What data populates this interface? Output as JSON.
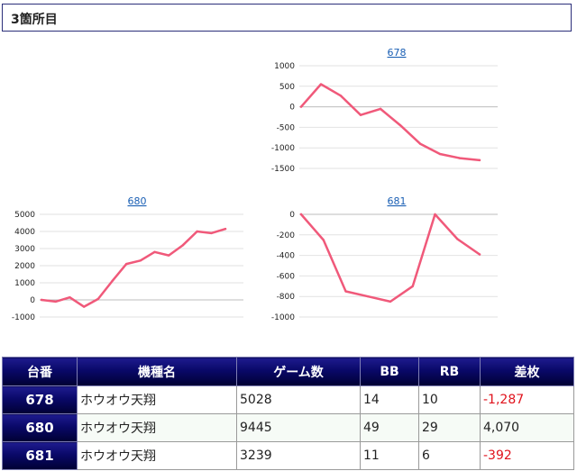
{
  "section": {
    "title": "3箇所目"
  },
  "charts": [
    {
      "machine": "678",
      "chart_data": {
        "type": "line",
        "title": "678",
        "ylim": [
          -1500,
          1000
        ],
        "yticks": [
          "1000",
          "500",
          "0",
          "-500",
          "-1000",
          "-1500"
        ],
        "series": [
          {
            "values": [
              0,
              550,
              270,
              -200,
              -50,
              -450,
              -900,
              -1150,
              -1250,
              -1300
            ]
          }
        ]
      }
    },
    {
      "machine": "680",
      "chart_data": {
        "type": "line",
        "title": "680",
        "ylim": [
          -1000,
          5000
        ],
        "yticks": [
          "5000",
          "4000",
          "3000",
          "2000",
          "1000",
          "0",
          "-1000"
        ],
        "series": [
          {
            "values": [
              0,
              -100,
              150,
              -400,
              50,
              1100,
              2100,
              2300,
              2800,
              2600,
              3200,
              4000,
              3900,
              4150
            ]
          }
        ]
      }
    },
    {
      "machine": "681",
      "chart_data": {
        "type": "line",
        "title": "681",
        "ylim": [
          -1000,
          0
        ],
        "yticks": [
          "0",
          "-200",
          "-400",
          "-600",
          "-800",
          "-1000"
        ],
        "series": [
          {
            "values": [
              0,
              -250,
              -750,
              -800,
              -850,
              -700,
              0,
              -240,
              -390
            ]
          }
        ]
      }
    }
  ],
  "table": {
    "headers": [
      "台番",
      "機種名",
      "ゲーム数",
      "BB",
      "RB",
      "差枚"
    ],
    "rows": [
      {
        "id": "678",
        "name": "ホウオウ天翔",
        "games": "5028",
        "bb": "14",
        "rb": "10",
        "diff": "-1,287",
        "negative": true
      },
      {
        "id": "680",
        "name": "ホウオウ天翔",
        "games": "9445",
        "bb": "49",
        "rb": "29",
        "diff": "4,070",
        "negative": false
      },
      {
        "id": "681",
        "name": "ホウオウ天翔",
        "games": "3239",
        "bb": "11",
        "rb": "6",
        "diff": "-392",
        "negative": true
      }
    ]
  },
  "colors": {
    "series": "#f0597a",
    "header_bg": "#0a0a6b",
    "negative": "#e0121c",
    "link": "#1a5fb4"
  }
}
